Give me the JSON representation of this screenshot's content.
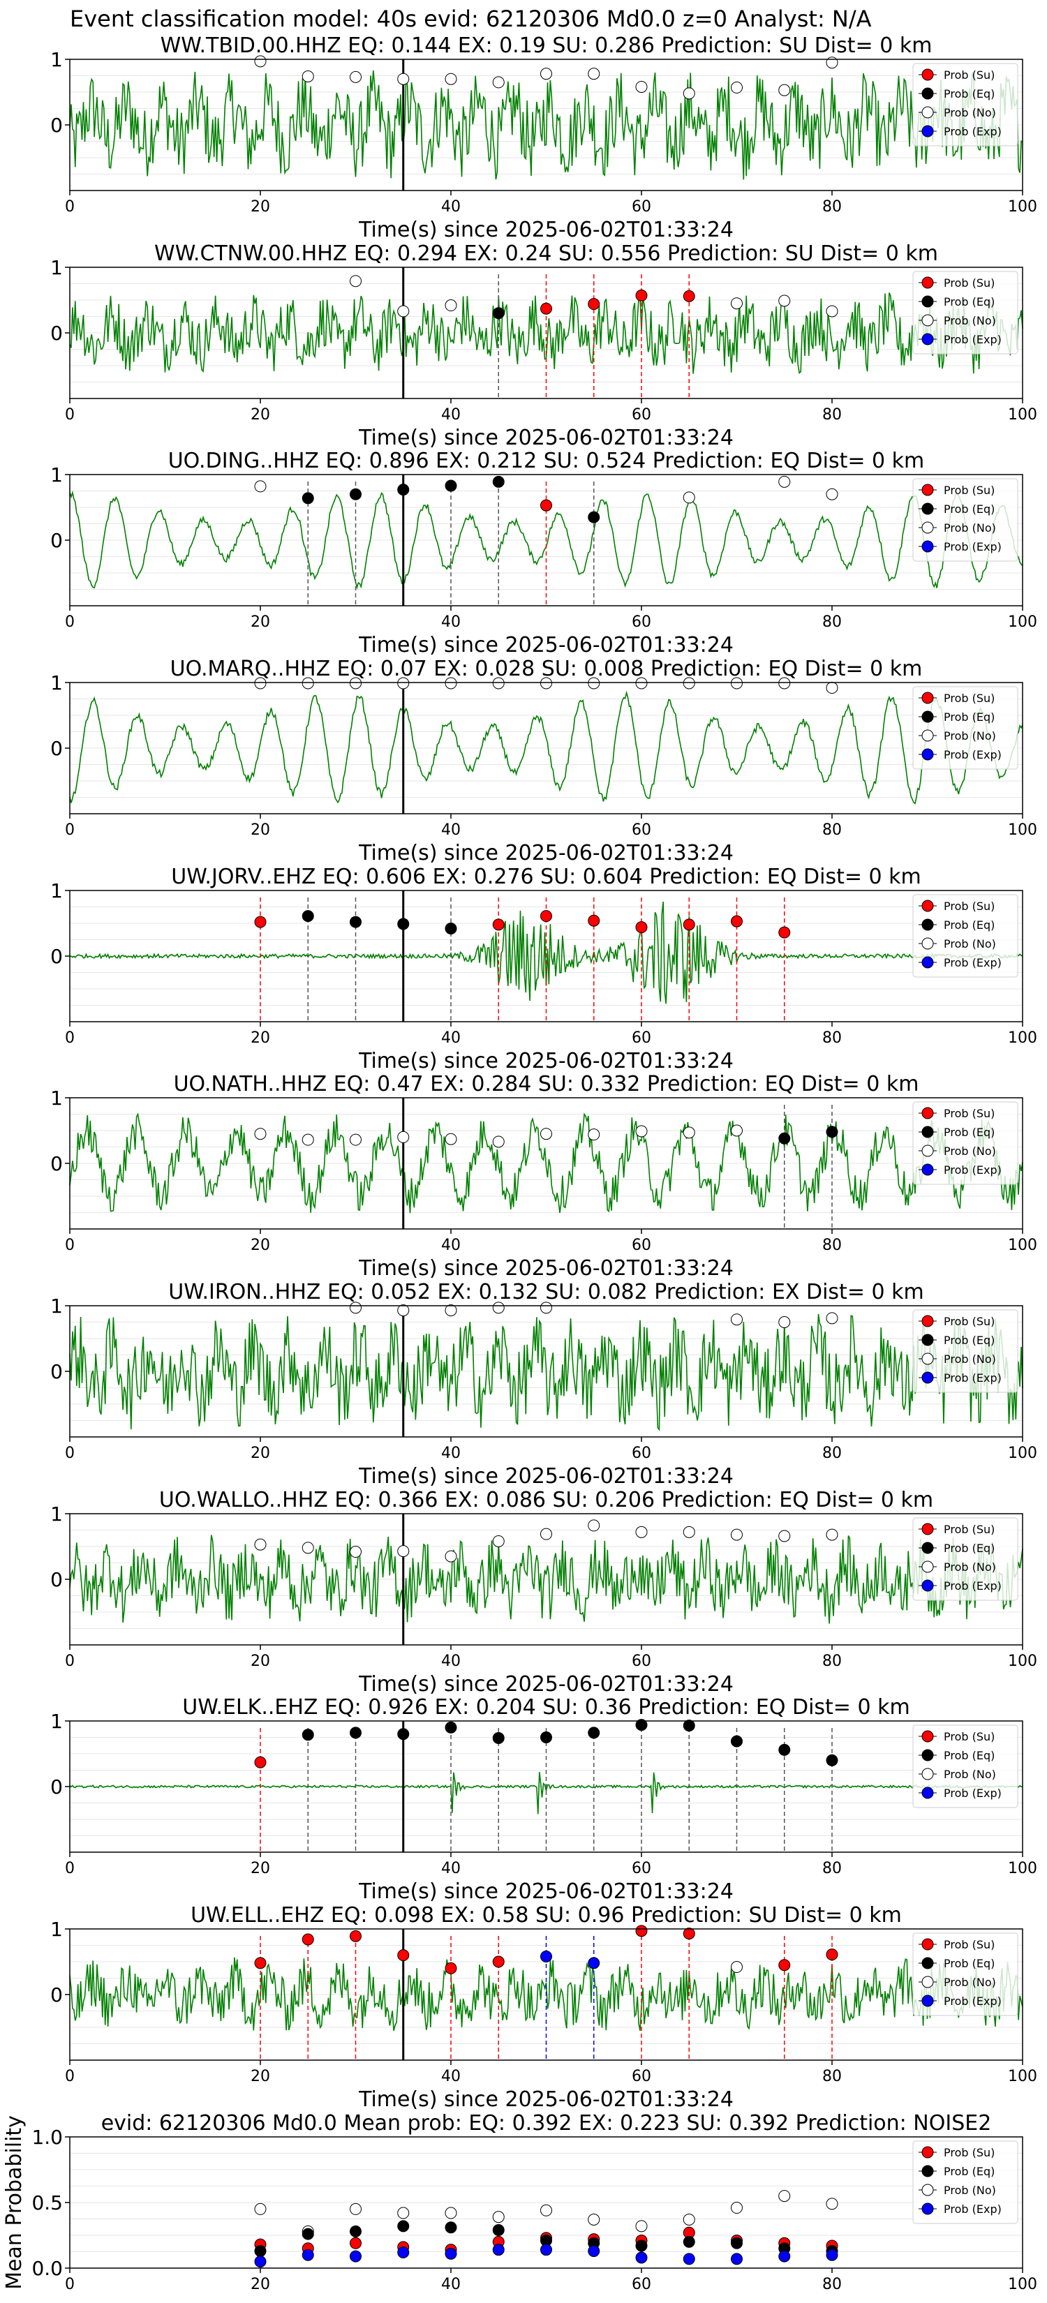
{
  "suptitle": "Event classification model: 40s evid: 62120306 Md0.0 z=0 Analyst: N/A",
  "xlabel": "Time(s) since 2025-06-02T01:33:24",
  "legend": [
    "Prob (Su)",
    "Prob (Eq)",
    "Prob (No)",
    "Prob (Exp)"
  ],
  "colors": {
    "su": "#ff0000",
    "eq": "#000000",
    "no": "#ffffff",
    "exp": "#0000ff",
    "trace": "#008000"
  },
  "chart_data": [
    {
      "type": "line",
      "title": "WW.TBID.00.HHZ   EQ: 0.144  EX: 0.19  SU: 0.286   Prediction: SU    Dist= 0 km",
      "style": "noisy",
      "xlim": [
        0,
        100
      ],
      "ylim": [
        -1,
        1
      ],
      "xticks": [
        0,
        20,
        40,
        60,
        80,
        100
      ],
      "yticks": [
        0,
        1
      ],
      "trace_amp": 0.8,
      "x": [
        20,
        25,
        30,
        35,
        40,
        45,
        50,
        55,
        60,
        65,
        70,
        75,
        80
      ],
      "labels": [
        "no",
        "no",
        "no",
        "no",
        "no",
        "no",
        "no",
        "no",
        "no",
        "no",
        "no",
        "no",
        "no"
      ],
      "values": [
        0.97,
        0.74,
        0.73,
        0.7,
        0.7,
        0.65,
        0.78,
        0.78,
        0.58,
        0.48,
        0.57,
        0.53,
        0.95
      ],
      "vlines": []
    },
    {
      "type": "line",
      "title": "WW.CTNW.00.HHZ   EQ: 0.294  EX: 0.24  SU: 0.556   Prediction: SU    Dist= 0 km",
      "style": "noisy",
      "xlim": [
        0,
        100
      ],
      "ylim": [
        -1,
        1
      ],
      "xticks": [
        0,
        20,
        40,
        60,
        80,
        100
      ],
      "yticks": [
        0,
        1
      ],
      "trace_amp": 0.6,
      "x": [
        30,
        35,
        40,
        45,
        50,
        55,
        60,
        65,
        70,
        75,
        80
      ],
      "labels": [
        "no",
        "no",
        "no",
        "eq",
        "su",
        "su",
        "su",
        "su",
        "no",
        "no",
        "no"
      ],
      "values": [
        0.79,
        0.33,
        0.42,
        0.3,
        0.37,
        0.44,
        0.57,
        0.56,
        0.45,
        0.49,
        0.33
      ],
      "vlines": [
        {
          "x": 45,
          "cls": "eq"
        },
        {
          "x": 50,
          "cls": "su"
        },
        {
          "x": 55,
          "cls": "su"
        },
        {
          "x": 60,
          "cls": "su"
        },
        {
          "x": 65,
          "cls": "su"
        }
      ]
    },
    {
      "type": "line",
      "title": "UO.DING..HHZ   EQ: 0.896  EX: 0.212  SU: 0.524   Prediction: EQ    Dist= 0 km",
      "style": "wave",
      "xlim": [
        0,
        100
      ],
      "ylim": [
        -1,
        1
      ],
      "xticks": [
        0,
        20,
        40,
        60,
        80,
        100
      ],
      "yticks": [
        0,
        1
      ],
      "trace_amp": 0.7,
      "x": [
        20,
        25,
        30,
        35,
        40,
        45,
        50,
        55,
        65,
        75,
        80
      ],
      "labels": [
        "no",
        "eq",
        "eq",
        "eq",
        "eq",
        "eq",
        "su",
        "eq",
        "no",
        "no",
        "no"
      ],
      "values": [
        0.82,
        0.64,
        0.7,
        0.77,
        0.83,
        0.89,
        0.53,
        0.35,
        0.65,
        0.89,
        0.7
      ],
      "vlines": [
        {
          "x": 25,
          "cls": "eq"
        },
        {
          "x": 30,
          "cls": "eq"
        },
        {
          "x": 40,
          "cls": "eq"
        },
        {
          "x": 45,
          "cls": "eq"
        },
        {
          "x": 50,
          "cls": "su"
        },
        {
          "x": 55,
          "cls": "eq"
        }
      ]
    },
    {
      "type": "line",
      "title": "UO.MARQ..HHZ   EQ: 0.07  EX: 0.028  SU: 0.008   Prediction: EQ    Dist= 0 km",
      "style": "wave",
      "xlim": [
        0,
        100
      ],
      "ylim": [
        -1,
        1
      ],
      "xticks": [
        0,
        20,
        40,
        60,
        80,
        100
      ],
      "yticks": [
        0,
        1
      ],
      "trace_amp": 0.8,
      "x": [
        20,
        25,
        30,
        35,
        40,
        45,
        50,
        55,
        60,
        65,
        70,
        75,
        80
      ],
      "labels": [
        "no",
        "no",
        "no",
        "no",
        "no",
        "no",
        "no",
        "no",
        "no",
        "no",
        "no",
        "no",
        "no"
      ],
      "values": [
        0.99,
        0.99,
        0.99,
        0.99,
        0.99,
        0.99,
        0.99,
        0.99,
        0.99,
        0.99,
        0.99,
        0.99,
        0.92
      ],
      "vlines": []
    },
    {
      "type": "line",
      "title": "UW.JORV..EHZ   EQ: 0.606  EX: 0.276  SU: 0.604   Prediction: EQ    Dist= 0 km",
      "style": "burst",
      "xlim": [
        0,
        100
      ],
      "ylim": [
        -1,
        1
      ],
      "xticks": [
        0,
        20,
        40,
        60,
        80,
        100
      ],
      "yticks": [
        0,
        1
      ],
      "trace_amp": 0.75,
      "x": [
        20,
        25,
        30,
        35,
        40,
        45,
        50,
        55,
        60,
        65,
        70,
        75
      ],
      "labels": [
        "su",
        "eq",
        "eq",
        "eq",
        "eq",
        "su",
        "su",
        "su",
        "su",
        "su",
        "su",
        "su"
      ],
      "values": [
        0.52,
        0.61,
        0.52,
        0.49,
        0.42,
        0.48,
        0.61,
        0.54,
        0.44,
        0.48,
        0.53,
        0.36
      ],
      "vlines": [
        {
          "x": 20,
          "cls": "su"
        },
        {
          "x": 25,
          "cls": "eq"
        },
        {
          "x": 30,
          "cls": "eq"
        },
        {
          "x": 40,
          "cls": "eq"
        },
        {
          "x": 45,
          "cls": "su"
        },
        {
          "x": 50,
          "cls": "su"
        },
        {
          "x": 55,
          "cls": "su"
        },
        {
          "x": 60,
          "cls": "su"
        },
        {
          "x": 65,
          "cls": "su"
        },
        {
          "x": 70,
          "cls": "su"
        },
        {
          "x": 75,
          "cls": "su"
        }
      ]
    },
    {
      "type": "line",
      "title": "UO.NATH..HHZ   EQ: 0.47  EX: 0.284  SU: 0.332   Prediction: EQ    Dist= 0 km",
      "style": "mixed",
      "xlim": [
        0,
        100
      ],
      "ylim": [
        -1,
        1
      ],
      "xticks": [
        0,
        20,
        40,
        60,
        80,
        100
      ],
      "yticks": [
        0,
        1
      ],
      "trace_amp": 0.8,
      "x": [
        20,
        25,
        30,
        35,
        40,
        45,
        50,
        55,
        60,
        65,
        70,
        75,
        80
      ],
      "labels": [
        "no",
        "no",
        "no",
        "no",
        "no",
        "no",
        "no",
        "no",
        "no",
        "no",
        "no",
        "eq",
        "eq"
      ],
      "values": [
        0.45,
        0.36,
        0.36,
        0.4,
        0.37,
        0.33,
        0.45,
        0.44,
        0.49,
        0.47,
        0.5,
        0.38,
        0.48
      ],
      "vlines": [
        {
          "x": 75,
          "cls": "eq"
        },
        {
          "x": 80,
          "cls": "eq"
        }
      ]
    },
    {
      "type": "line",
      "title": "UW.IRON..HHZ   EQ: 0.052  EX: 0.132  SU: 0.082   Prediction: EX    Dist= 0 km",
      "style": "noisy",
      "xlim": [
        0,
        100
      ],
      "ylim": [
        -1,
        1
      ],
      "xticks": [
        0,
        20,
        40,
        60,
        80,
        100
      ],
      "yticks": [
        0,
        1
      ],
      "trace_amp": 0.85,
      "x": [
        30,
        35,
        40,
        45,
        50,
        70,
        75,
        80
      ],
      "labels": [
        "no",
        "no",
        "no",
        "no",
        "no",
        "no",
        "no",
        "no"
      ],
      "values": [
        0.97,
        0.93,
        0.93,
        0.97,
        0.97,
        0.79,
        0.75,
        0.81
      ],
      "vlines": []
    },
    {
      "type": "line",
      "title": "UO.WALLO..HHZ   EQ: 0.366  EX: 0.086  SU: 0.206   Prediction: EQ    Dist= 0 km",
      "style": "noisy",
      "xlim": [
        0,
        100
      ],
      "ylim": [
        -1,
        1
      ],
      "xticks": [
        0,
        20,
        40,
        60,
        80,
        100
      ],
      "yticks": [
        0,
        1
      ],
      "trace_amp": 0.65,
      "x": [
        20,
        25,
        30,
        35,
        40,
        45,
        50,
        55,
        60,
        65,
        70,
        75,
        80
      ],
      "labels": [
        "no",
        "no",
        "no",
        "no",
        "no",
        "no",
        "no",
        "no",
        "no",
        "no",
        "no",
        "no",
        "no"
      ],
      "values": [
        0.53,
        0.48,
        0.42,
        0.43,
        0.35,
        0.58,
        0.69,
        0.82,
        0.72,
        0.72,
        0.68,
        0.66,
        0.68
      ],
      "vlines": []
    },
    {
      "type": "line",
      "title": "UW.ELK..EHZ   EQ: 0.926  EX: 0.204  SU: 0.36   Prediction: EQ    Dist= 0 km",
      "style": "quiet",
      "xlim": [
        0,
        100
      ],
      "ylim": [
        -1,
        1
      ],
      "xticks": [
        0,
        20,
        40,
        60,
        80,
        100
      ],
      "yticks": [
        0,
        1
      ],
      "trace_amp": 0.45,
      "x": [
        20,
        25,
        30,
        35,
        40,
        45,
        50,
        55,
        60,
        65,
        70,
        75,
        80
      ],
      "labels": [
        "su",
        "eq",
        "eq",
        "eq",
        "eq",
        "eq",
        "eq",
        "eq",
        "eq",
        "eq",
        "eq",
        "eq",
        "eq"
      ],
      "values": [
        0.37,
        0.79,
        0.82,
        0.8,
        0.9,
        0.74,
        0.75,
        0.82,
        0.94,
        0.93,
        0.69,
        0.56,
        0.4
      ],
      "vlines": [
        {
          "x": 20,
          "cls": "su"
        },
        {
          "x": 25,
          "cls": "eq"
        },
        {
          "x": 30,
          "cls": "eq"
        },
        {
          "x": 40,
          "cls": "eq"
        },
        {
          "x": 45,
          "cls": "eq"
        },
        {
          "x": 50,
          "cls": "eq"
        },
        {
          "x": 55,
          "cls": "eq"
        },
        {
          "x": 60,
          "cls": "eq"
        },
        {
          "x": 65,
          "cls": "eq"
        },
        {
          "x": 70,
          "cls": "eq"
        },
        {
          "x": 75,
          "cls": "eq"
        },
        {
          "x": 80,
          "cls": "eq"
        }
      ]
    },
    {
      "type": "line",
      "title": "UW.ELL..EHZ   EQ: 0.098  EX: 0.58  SU: 0.96   Prediction: SU    Dist= 0 km",
      "style": "noisy",
      "xlim": [
        0,
        100
      ],
      "ylim": [
        -1,
        1
      ],
      "xticks": [
        0,
        20,
        40,
        60,
        80,
        100
      ],
      "yticks": [
        0,
        1
      ],
      "trace_amp": 0.55,
      "x": [
        20,
        25,
        30,
        35,
        40,
        45,
        50,
        55,
        60,
        65,
        70,
        75,
        80
      ],
      "labels": [
        "su",
        "su",
        "su",
        "su",
        "su",
        "su",
        "exp",
        "exp",
        "su",
        "su",
        "no",
        "su",
        "su"
      ],
      "values": [
        0.48,
        0.84,
        0.89,
        0.6,
        0.4,
        0.5,
        0.58,
        0.48,
        0.97,
        0.93,
        0.42,
        0.45,
        0.61
      ],
      "vlines": [
        {
          "x": 20,
          "cls": "su"
        },
        {
          "x": 25,
          "cls": "su"
        },
        {
          "x": 30,
          "cls": "su"
        },
        {
          "x": 40,
          "cls": "su"
        },
        {
          "x": 45,
          "cls": "su"
        },
        {
          "x": 50,
          "cls": "exp"
        },
        {
          "x": 55,
          "cls": "exp"
        },
        {
          "x": 60,
          "cls": "su"
        },
        {
          "x": 65,
          "cls": "su"
        },
        {
          "x": 75,
          "cls": "su"
        },
        {
          "x": 80,
          "cls": "su"
        }
      ]
    },
    {
      "type": "scatter",
      "title": "evid: 62120306  Md0.0   Mean prob:   EQ: 0.392  EX: 0.223  SU: 0.392   Prediction: NOISE2",
      "ylabel": "Mean Probability",
      "xlim": [
        0,
        100
      ],
      "ylim": [
        0,
        1
      ],
      "xticks": [
        0,
        20,
        40,
        60,
        80,
        100
      ],
      "yticks": [
        0.0,
        0.5,
        1.0
      ],
      "x": [
        20,
        25,
        30,
        35,
        40,
        45,
        50,
        55,
        60,
        65,
        70,
        75,
        80
      ],
      "series": [
        {
          "cls": "no",
          "values": [
            0.45,
            0.28,
            0.45,
            0.42,
            0.42,
            0.39,
            0.44,
            0.37,
            0.32,
            0.37,
            0.46,
            0.55,
            0.49
          ]
        },
        {
          "cls": "su",
          "values": [
            0.18,
            0.15,
            0.19,
            0.16,
            0.14,
            0.2,
            0.23,
            0.22,
            0.21,
            0.27,
            0.21,
            0.19,
            0.17
          ]
        },
        {
          "cls": "eq",
          "values": [
            0.13,
            0.26,
            0.28,
            0.32,
            0.31,
            0.29,
            0.21,
            0.19,
            0.17,
            0.2,
            0.19,
            0.15,
            0.13
          ]
        },
        {
          "cls": "exp",
          "values": [
            0.05,
            0.1,
            0.09,
            0.12,
            0.11,
            0.14,
            0.14,
            0.13,
            0.08,
            0.07,
            0.07,
            0.09,
            0.1
          ]
        }
      ]
    }
  ]
}
